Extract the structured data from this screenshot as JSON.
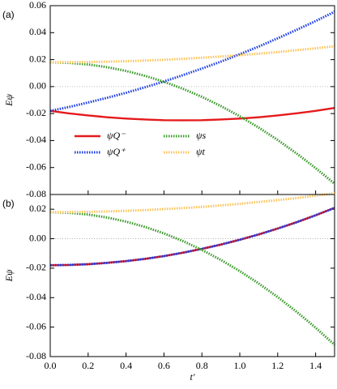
{
  "chart_data": [
    {
      "type": "line",
      "panel_label": "(a)",
      "ylabel": "Eψ",
      "x": [
        0,
        0.1,
        0.2,
        0.3,
        0.4,
        0.5,
        0.6,
        0.7,
        0.8,
        0.9,
        1.0,
        1.1,
        1.2,
        1.3,
        1.4,
        1.5
      ],
      "xlim": [
        0,
        1.5
      ],
      "ylim": [
        -0.08,
        0.06
      ],
      "yticks": [
        0.06,
        0.04,
        0.02,
        {
          "value": 0,
          "label": "0.00"
        },
        -0.02,
        -0.04,
        -0.06,
        -0.08
      ],
      "zero_line": true,
      "legend": "lower left",
      "series": [
        {
          "name": "ψQ⁻",
          "color": "#e41a1c",
          "style": "solid",
          "values": [
            -0.018,
            -0.0199,
            -0.0214,
            -0.0227,
            -0.0237,
            -0.0244,
            -0.0249,
            -0.025,
            -0.0249,
            -0.0244,
            -0.0237,
            -0.0227,
            -0.0214,
            -0.0198,
            -0.018,
            -0.0158
          ]
        },
        {
          "name": "ψQ⁺",
          "color": "#1a3be4",
          "style": "dotted",
          "values": [
            -0.018,
            -0.0151,
            -0.0118,
            -0.0083,
            -0.0046,
            -0.0005,
            0.0038,
            0.0085,
            0.0134,
            0.0185,
            0.024,
            0.0297,
            0.0358,
            0.0421,
            0.0486,
            0.0555
          ]
        },
        {
          "name": "ψs",
          "color": "#3a9a2a",
          "style": "dotted",
          "values": [
            0.018,
            0.0176,
            0.0164,
            0.0144,
            0.0116,
            0.008,
            0.0036,
            -0.0016,
            -0.0076,
            -0.0144,
            -0.022,
            -0.0304,
            -0.0396,
            -0.0496,
            -0.0604,
            -0.072
          ]
        },
        {
          "name": "ψt",
          "color": "#fbc35a",
          "style": "dotted",
          "values": [
            0.018,
            0.0181,
            0.0182,
            0.0185,
            0.0188,
            0.0193,
            0.0199,
            0.0206,
            0.0214,
            0.0223,
            0.0233,
            0.0244,
            0.0256,
            0.027,
            0.0284,
            0.0299
          ]
        }
      ]
    },
    {
      "type": "line",
      "panel_label": "(b)",
      "ylabel": "Eψ",
      "xlabel": "t′",
      "x": [
        0,
        0.1,
        0.2,
        0.3,
        0.4,
        0.5,
        0.6,
        0.7,
        0.8,
        0.9,
        1.0,
        1.1,
        1.2,
        1.3,
        1.4,
        1.5
      ],
      "xlim": [
        0,
        1.5
      ],
      "xticks": [
        {
          "value": 0,
          "label": "0.0"
        },
        0.2,
        0.4,
        0.6,
        0.8,
        {
          "value": 1,
          "label": "1.0"
        },
        1.2,
        1.4
      ],
      "ylim": [
        -0.08,
        0.03
      ],
      "yticks": [
        0.02,
        {
          "value": 0,
          "label": "0.00"
        },
        -0.02,
        -0.04,
        -0.06,
        -0.08
      ],
      "zero_line": true,
      "series": [
        {
          "color": "#e41a1c",
          "style": "solid",
          "values": [
            -0.018,
            -0.0178,
            -0.0173,
            -0.0164,
            -0.0152,
            -0.0137,
            -0.0118,
            -0.0095,
            -0.0069,
            -0.004,
            -0.0007,
            0.0029,
            0.0069,
            0.0112,
            0.0159,
            0.0209
          ]
        },
        {
          "color": "#1a3be4",
          "style": "dotted",
          "values": [
            -0.018,
            -0.0178,
            -0.0173,
            -0.0164,
            -0.0152,
            -0.0137,
            -0.0118,
            -0.0095,
            -0.0069,
            -0.004,
            -0.0007,
            0.0029,
            0.0069,
            0.0112,
            0.0159,
            0.0209
          ]
        },
        {
          "color": "#3a9a2a",
          "style": "dotted",
          "values": [
            0.018,
            0.0176,
            0.0164,
            0.0144,
            0.0116,
            0.008,
            0.0036,
            -0.0016,
            -0.0076,
            -0.0144,
            -0.022,
            -0.0304,
            -0.0396,
            -0.0496,
            -0.0604,
            -0.072
          ]
        },
        {
          "color": "#fbc35a",
          "style": "dotted",
          "values": [
            0.018,
            0.0181,
            0.0182,
            0.0185,
            0.0189,
            0.0194,
            0.0201,
            0.0208,
            0.0216,
            0.0226,
            0.0237,
            0.0249,
            0.0262,
            0.0276,
            0.0292,
            0.0308
          ]
        }
      ]
    }
  ]
}
